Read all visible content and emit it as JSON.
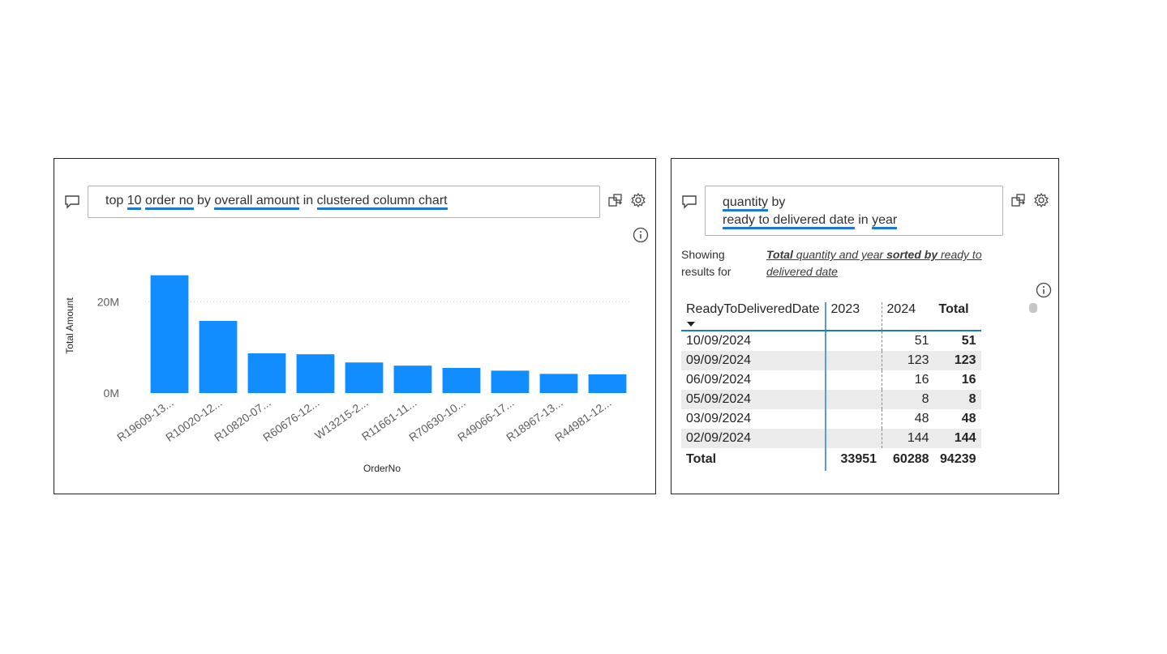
{
  "left_panel": {
    "query": {
      "parts": [
        {
          "text": "top ",
          "u": false
        },
        {
          "text": "10",
          "u": true
        },
        {
          "text": " ",
          "u": false
        },
        {
          "text": "order no",
          "u": true
        },
        {
          "text": " by ",
          "u": false
        },
        {
          "text": "overall amount",
          "u": true
        },
        {
          "text": " in ",
          "u": false
        },
        {
          "text": "clustered column chart",
          "u": true
        }
      ]
    },
    "icons": [
      "comment-icon",
      "share-icon",
      "gear-icon",
      "info-icon"
    ]
  },
  "chart_data": {
    "type": "bar",
    "title": "",
    "xlabel": "OrderNo",
    "ylabel": "Total Amount",
    "categories": [
      "R19609-13...",
      "R10020-12...",
      "R10820-07...",
      "R60676-12...",
      "W13215-2...",
      "R11661-11...",
      "R70630-10...",
      "R49066-17...",
      "R18967-13...",
      "R44981-12..."
    ],
    "values": [
      25800000,
      15800000,
      8700000,
      8500000,
      6700000,
      6000000,
      5500000,
      4900000,
      4200000,
      4100000
    ],
    "yticks": [
      {
        "value": 0,
        "label": "0M"
      },
      {
        "value": 20000000,
        "label": "20M"
      }
    ],
    "ylim": [
      0,
      30000000
    ],
    "grid": true,
    "bar_color": "#118dff"
  },
  "right_panel": {
    "query": {
      "line1": [
        {
          "text": "quantity",
          "u": true
        },
        {
          "text": " by",
          "u": false
        }
      ],
      "line2": [
        {
          "text": "ready to delivered date",
          "u": true
        },
        {
          "text": " in ",
          "u": false
        },
        {
          "text": "year",
          "u": true
        }
      ]
    },
    "showing_label": "Showing results for",
    "restatement": {
      "bold1": "Total",
      "mid1": " quantity and year ",
      "bold2": "sorted by",
      "mid2": " ready to delivered date"
    },
    "table": {
      "headers": [
        "ReadyToDeliveredDate",
        "2023",
        "2024",
        "Total"
      ],
      "rows": [
        {
          "date": "10/09/2024",
          "y2023": "",
          "y2024": "51",
          "total": "51"
        },
        {
          "date": "09/09/2024",
          "y2023": "",
          "y2024": "123",
          "total": "123"
        },
        {
          "date": "06/09/2024",
          "y2023": "",
          "y2024": "16",
          "total": "16"
        },
        {
          "date": "05/09/2024",
          "y2023": "",
          "y2024": "8",
          "total": "8"
        },
        {
          "date": "03/09/2024",
          "y2023": "",
          "y2024": "48",
          "total": "48"
        },
        {
          "date": "02/09/2024",
          "y2023": "",
          "y2024": "144",
          "total": "144"
        }
      ],
      "totals": {
        "label": "Total",
        "y2023": "33951",
        "y2024": "60288",
        "total": "94239"
      }
    }
  },
  "colors": {
    "accent": "#1f77d4",
    "bar": "#118dff",
    "row_alt": "#ebebeb"
  }
}
